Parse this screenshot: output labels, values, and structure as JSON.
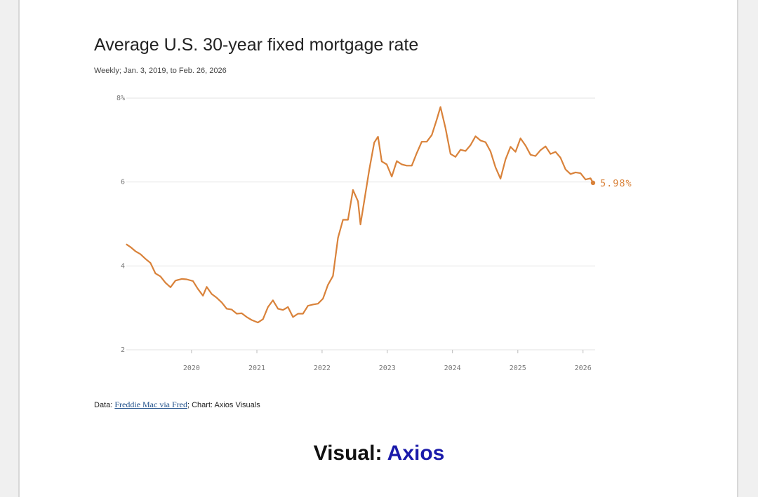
{
  "caption": {
    "prefix": "Visual:",
    "brand": "Axios"
  },
  "source": {
    "prefix": "Data: ",
    "link_text": "Freddie Mac via Fred",
    "suffix": "; Chart: Axios Visuals"
  },
  "colors": {
    "line": "#d9823a",
    "brand": "#1a1aaa",
    "link": "#1d4e89",
    "grid": "#e3e3e3"
  },
  "chart_data": {
    "type": "line",
    "title": "Average U.S. 30-year fixed mortgage rate",
    "subtitle": "Weekly; Jan. 3, 2019, to Feb. 26, 2026",
    "xlabel": "",
    "ylabel": "",
    "x_ticks": [
      "2020",
      "2021",
      "2022",
      "2023",
      "2024",
      "2025",
      "2026"
    ],
    "y_ticks": [
      "2",
      "4",
      "6",
      "8%"
    ],
    "ylim": [
      2,
      8
    ],
    "xlim": [
      "2019-01-03",
      "2026-02-26"
    ],
    "grid": "horizontal",
    "end_label": "5.98%",
    "series": [
      {
        "x": [
          "2019-01-03",
          "2019-01-24",
          "2019-02-21",
          "2019-03-21",
          "2019-04-18",
          "2019-05-16",
          "2019-06-13",
          "2019-07-11",
          "2019-08-08",
          "2019-09-05",
          "2019-10-03",
          "2019-11-07",
          "2019-12-05",
          "2020-01-09",
          "2020-02-06",
          "2020-03-05",
          "2020-03-26",
          "2020-04-23",
          "2020-05-21",
          "2020-06-18",
          "2020-07-16",
          "2020-08-13",
          "2020-09-10",
          "2020-10-08",
          "2020-11-05",
          "2020-12-03",
          "2021-01-07",
          "2021-02-04",
          "2021-03-04",
          "2021-04-01",
          "2021-04-29",
          "2021-05-27",
          "2021-06-24",
          "2021-07-22",
          "2021-08-19",
          "2021-09-16",
          "2021-10-14",
          "2021-11-11",
          "2021-12-09",
          "2022-01-06",
          "2022-02-03",
          "2022-03-03",
          "2022-03-31",
          "2022-04-28",
          "2022-05-26",
          "2022-06-23",
          "2022-07-21",
          "2022-08-04",
          "2022-08-25",
          "2022-09-22",
          "2022-10-20",
          "2022-11-10",
          "2022-12-01",
          "2022-12-29",
          "2023-01-26",
          "2023-02-23",
          "2023-03-23",
          "2023-04-20",
          "2023-05-18",
          "2023-06-15",
          "2023-07-13",
          "2023-08-10",
          "2023-09-07",
          "2023-10-05",
          "2023-10-26",
          "2023-11-23",
          "2023-12-21",
          "2024-01-18",
          "2024-02-15",
          "2024-03-14",
          "2024-04-11",
          "2024-05-09",
          "2024-06-06",
          "2024-07-04",
          "2024-08-01",
          "2024-08-29",
          "2024-09-26",
          "2024-10-24",
          "2024-11-21",
          "2024-12-19",
          "2025-01-16",
          "2025-02-13",
          "2025-03-13",
          "2025-04-10",
          "2025-05-08",
          "2025-06-05",
          "2025-07-03",
          "2025-07-31",
          "2025-08-28",
          "2025-09-25",
          "2025-10-23",
          "2025-11-20",
          "2025-12-18",
          "2026-01-15",
          "2026-02-12",
          "2026-02-26"
        ],
        "values": [
          4.51,
          4.45,
          4.35,
          4.28,
          4.17,
          4.07,
          3.82,
          3.75,
          3.6,
          3.49,
          3.65,
          3.69,
          3.68,
          3.64,
          3.45,
          3.29,
          3.5,
          3.33,
          3.24,
          3.13,
          2.98,
          2.96,
          2.86,
          2.87,
          2.78,
          2.71,
          2.65,
          2.73,
          3.02,
          3.18,
          2.98,
          2.95,
          3.02,
          2.78,
          2.86,
          2.86,
          3.05,
          3.08,
          3.1,
          3.22,
          3.55,
          3.76,
          4.67,
          5.1,
          5.1,
          5.81,
          5.54,
          4.99,
          5.55,
          6.29,
          6.94,
          7.08,
          6.49,
          6.42,
          6.13,
          6.5,
          6.42,
          6.39,
          6.39,
          6.69,
          6.96,
          6.96,
          7.12,
          7.49,
          7.79,
          7.29,
          6.67,
          6.6,
          6.77,
          6.74,
          6.88,
          7.09,
          6.99,
          6.95,
          6.73,
          6.35,
          6.08,
          6.54,
          6.84,
          6.72,
          7.04,
          6.87,
          6.65,
          6.62,
          6.76,
          6.85,
          6.67,
          6.72,
          6.58,
          6.3,
          6.19,
          6.23,
          6.21,
          6.06,
          6.09,
          5.98
        ]
      }
    ]
  }
}
